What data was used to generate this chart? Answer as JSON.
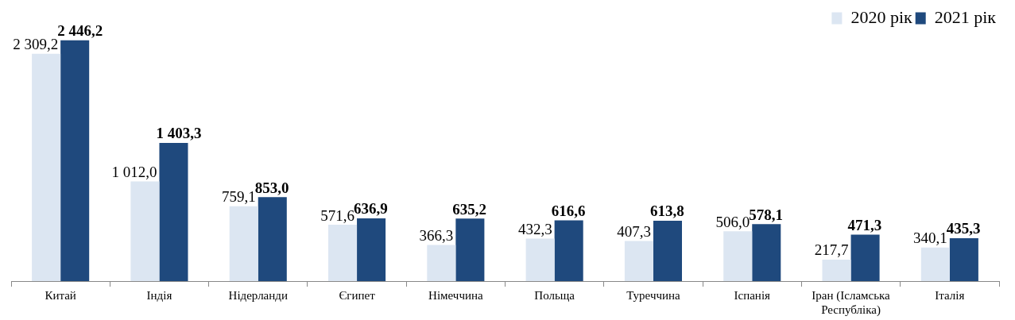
{
  "chart_data": {
    "type": "bar",
    "categories": [
      "Китай",
      "Індія",
      "Нідерланди",
      "Єгипет",
      "Німеччина",
      "Польща",
      "Туреччина",
      "Іспанія",
      "Іран (Ісламська Республіка)",
      "Італія"
    ],
    "series": [
      {
        "name": "2020 рік",
        "color": "#dce6f2",
        "values": [
          2309.2,
          1012.0,
          759.1,
          571.6,
          366.3,
          432.3,
          407.3,
          506.0,
          217.7,
          340.1
        ],
        "value_labels": [
          "2 309,2",
          "1 012,0",
          "759,1",
          "571,6",
          "366,3",
          "432,3",
          "407,3",
          "506,0",
          "217,7",
          "340,1"
        ]
      },
      {
        "name": "2021 рік",
        "color": "#1f497d",
        "values": [
          2446.2,
          1403.3,
          853.0,
          636.9,
          635.2,
          616.6,
          613.8,
          578.1,
          471.3,
          435.3
        ],
        "value_labels": [
          "2 446,2",
          "1 403,3",
          "853,0",
          "636,9",
          "635,2",
          "616,6",
          "613,8",
          "578,1",
          "471,3",
          "435,3"
        ]
      }
    ],
    "legend": "top right",
    "tick_labels": "x"
  }
}
